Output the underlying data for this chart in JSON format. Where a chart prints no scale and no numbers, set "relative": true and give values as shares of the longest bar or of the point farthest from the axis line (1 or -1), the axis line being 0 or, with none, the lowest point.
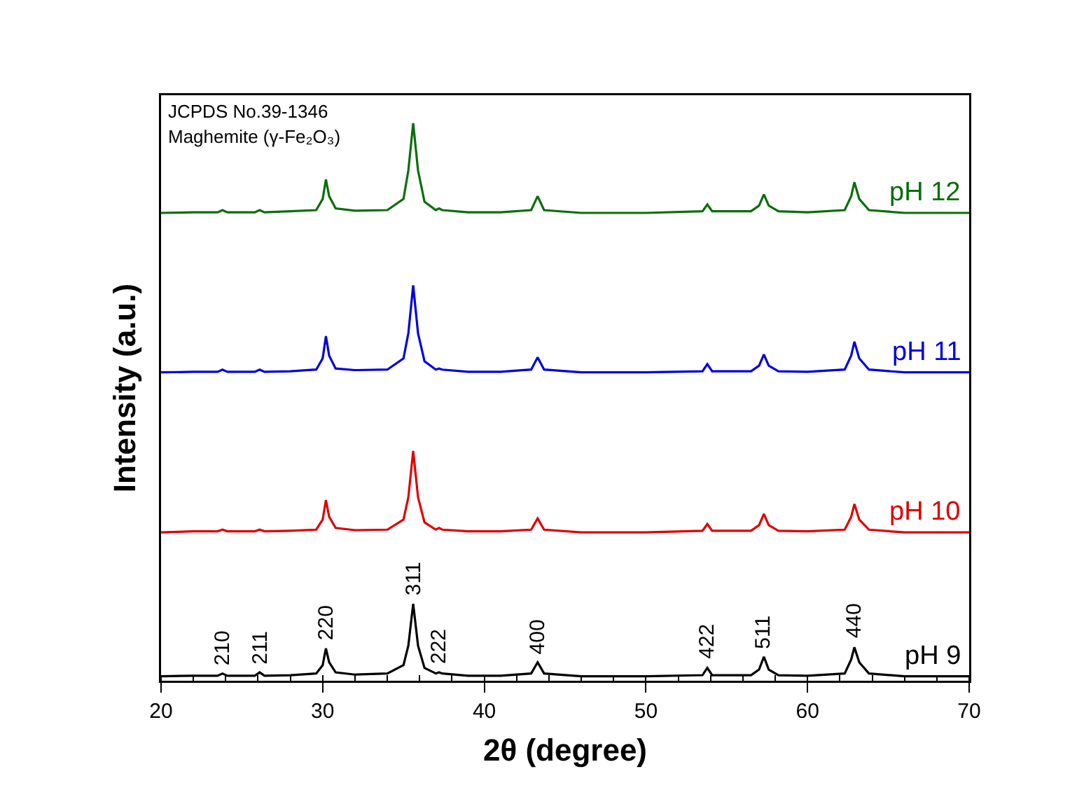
{
  "chart_data": {
    "type": "line",
    "xlabel": "2θ (degree)",
    "ylabel": "Intensity (a.u.)",
    "relative": true,
    "legend": false,
    "grid": false,
    "marker": "none",
    "line_style": "solid",
    "xlim": [
      20,
      70
    ],
    "xticks": [
      20,
      30,
      40,
      50,
      60,
      70
    ],
    "x": [
      20,
      22,
      23.5,
      23.8,
      24.1,
      25.8,
      26.1,
      26.4,
      28,
      29.6,
      30.0,
      30.2,
      30.4,
      30.8,
      32,
      34,
      35.0,
      35.3,
      35.6,
      35.9,
      36.3,
      37.0,
      37.2,
      37.4,
      39,
      41,
      42.9,
      43.3,
      43.7,
      46,
      50,
      53.5,
      53.8,
      54.1,
      56.5,
      57.0,
      57.3,
      57.6,
      58.2,
      60,
      62.3,
      62.7,
      62.9,
      63.2,
      63.8,
      66,
      70
    ],
    "series": [
      {
        "name": "pH 9",
        "color": "#000000",
        "values": [
          0.008,
          0.009,
          0.009,
          0.013,
          0.009,
          0.009,
          0.015,
          0.009,
          0.01,
          0.013,
          0.028,
          0.058,
          0.033,
          0.015,
          0.011,
          0.013,
          0.028,
          0.063,
          0.138,
          0.063,
          0.023,
          0.013,
          0.015,
          0.013,
          0.009,
          0.009,
          0.013,
          0.033,
          0.013,
          0.008,
          0.008,
          0.01,
          0.023,
          0.01,
          0.01,
          0.02,
          0.043,
          0.02,
          0.01,
          0.009,
          0.013,
          0.038,
          0.06,
          0.033,
          0.013,
          0.008,
          0.008
        ]
      },
      {
        "name": "pH 10",
        "color": "#e00000",
        "values": [
          0.266,
          0.268,
          0.268,
          0.271,
          0.268,
          0.268,
          0.271,
          0.268,
          0.269,
          0.271,
          0.289,
          0.324,
          0.294,
          0.274,
          0.27,
          0.271,
          0.289,
          0.329,
          0.412,
          0.329,
          0.284,
          0.271,
          0.274,
          0.271,
          0.268,
          0.268,
          0.271,
          0.291,
          0.271,
          0.266,
          0.266,
          0.269,
          0.281,
          0.269,
          0.269,
          0.279,
          0.299,
          0.279,
          0.269,
          0.268,
          0.271,
          0.294,
          0.317,
          0.289,
          0.271,
          0.266,
          0.266
        ]
      },
      {
        "name": "pH 11",
        "color": "#0000e0",
        "values": [
          0.553,
          0.554,
          0.554,
          0.558,
          0.554,
          0.554,
          0.558,
          0.554,
          0.555,
          0.558,
          0.578,
          0.618,
          0.583,
          0.56,
          0.557,
          0.558,
          0.578,
          0.623,
          0.709,
          0.623,
          0.573,
          0.558,
          0.56,
          0.558,
          0.554,
          0.554,
          0.558,
          0.58,
          0.558,
          0.553,
          0.553,
          0.555,
          0.568,
          0.555,
          0.555,
          0.565,
          0.585,
          0.565,
          0.555,
          0.554,
          0.558,
          0.583,
          0.608,
          0.578,
          0.558,
          0.553,
          0.553
        ]
      },
      {
        "name": "pH 12",
        "color": "#0a6e0a",
        "values": [
          0.839,
          0.84,
          0.84,
          0.844,
          0.84,
          0.84,
          0.844,
          0.84,
          0.842,
          0.844,
          0.864,
          0.899,
          0.869,
          0.847,
          0.843,
          0.844,
          0.864,
          0.915,
          1,
          0.915,
          0.859,
          0.844,
          0.847,
          0.844,
          0.84,
          0.84,
          0.844,
          0.869,
          0.844,
          0.839,
          0.839,
          0.842,
          0.854,
          0.842,
          0.842,
          0.852,
          0.872,
          0.852,
          0.842,
          0.84,
          0.844,
          0.869,
          0.894,
          0.864,
          0.844,
          0.839,
          0.839
        ]
      }
    ],
    "annotations": [
      "JCPDS No.39-1346",
      "Maghemite (γ-Fe₂O₃)",
      {
        "text": "210",
        "x": 23.8,
        "y": 0.013
      },
      {
        "text": "211",
        "x": 26.1,
        "y": 0.015
      },
      {
        "text": "220",
        "x": 30.2,
        "y": 0.058
      },
      {
        "text": "311",
        "x": 35.6,
        "y": 0.138
      },
      {
        "text": "222",
        "x": 37.2,
        "y": 0.015
      },
      {
        "text": "400",
        "x": 43.3,
        "y": 0.033
      },
      {
        "text": "422",
        "x": 53.8,
        "y": 0.023
      },
      {
        "text": "511",
        "x": 57.3,
        "y": 0.043
      },
      {
        "text": "440",
        "x": 62.9,
        "y": 0.06
      }
    ]
  }
}
